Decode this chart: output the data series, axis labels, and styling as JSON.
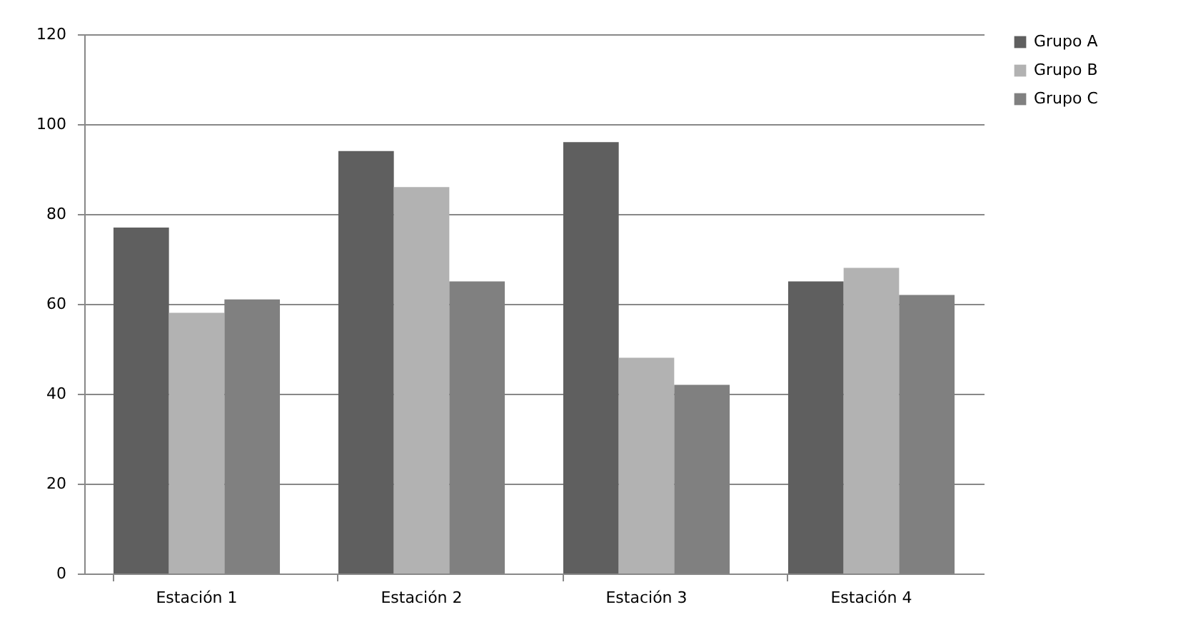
{
  "chart_data": {
    "type": "bar",
    "categories": [
      "Estación 1",
      "Estación 2",
      "Estación 3",
      "Estación 4"
    ],
    "series": [
      {
        "name": "Grupo A",
        "color": "#5f5f5f",
        "values": [
          77,
          94,
          96,
          65
        ]
      },
      {
        "name": "Grupo B",
        "color": "#b2b2b2",
        "values": [
          58,
          86,
          48,
          68
        ]
      },
      {
        "name": "Grupo C",
        "color": "#808080",
        "values": [
          61,
          65,
          42,
          62
        ]
      }
    ],
    "ylim": [
      0,
      120
    ],
    "yticks": [
      0,
      20,
      40,
      60,
      80,
      100,
      120
    ],
    "grid": "y",
    "legend": "right"
  }
}
